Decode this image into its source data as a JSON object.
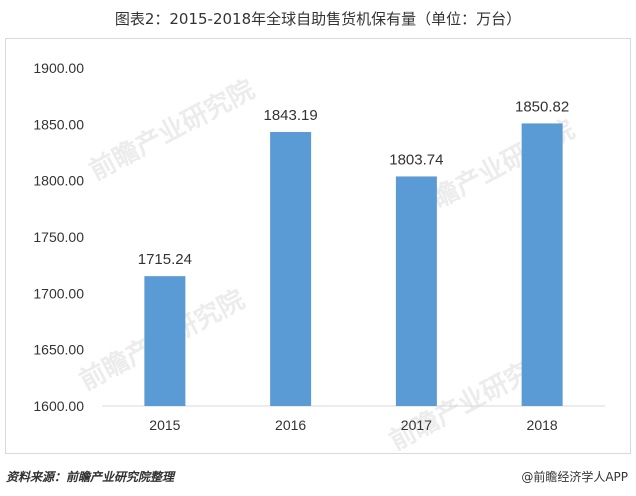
{
  "title": "图表2：2015-2018年全球自助售货机保有量（单位：万台）",
  "source": "资料来源：前瞻产业研究院整理",
  "brand": "@前瞻经济学人APP",
  "watermark": "前瞻产业研究院",
  "colors": {
    "bar": "#5b9bd5",
    "axis": "#d9d9d9",
    "text": "#333333"
  },
  "chart_data": {
    "type": "bar",
    "categories": [
      "2015",
      "2016",
      "2017",
      "2018"
    ],
    "values": [
      1715.24,
      1843.19,
      1803.74,
      1850.82
    ],
    "value_labels": [
      "1715.24",
      "1843.19",
      "1803.74",
      "1850.82"
    ],
    "yticks": [
      "1600.00",
      "1650.00",
      "1700.00",
      "1750.00",
      "1800.00",
      "1850.00",
      "1900.00"
    ],
    "ylim": [
      1600,
      1900
    ],
    "grid": false,
    "xlabel": "",
    "ylabel": ""
  }
}
